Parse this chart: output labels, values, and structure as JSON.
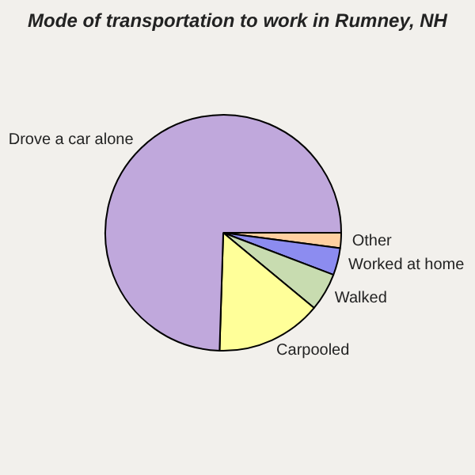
{
  "chart_data": {
    "type": "pie",
    "title": "Mode of transportation to work in Rumney, NH",
    "categories": [
      "Other",
      "Worked at home",
      "Walked",
      "Carpooled",
      "Drove a car alone"
    ],
    "values": [
      2.1,
      3.7,
      5.2,
      14.5,
      74.5
    ],
    "colors": [
      "#ffd0a0",
      "#8c8cf0",
      "#c8dcb0",
      "#ffff99",
      "#c0a8dc"
    ]
  }
}
